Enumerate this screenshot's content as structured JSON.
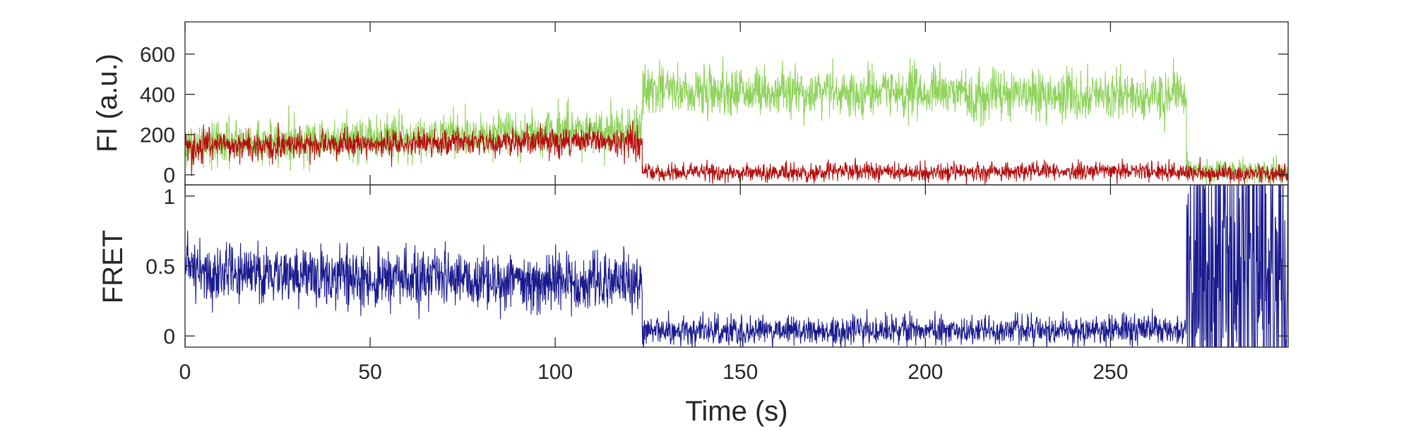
{
  "chart_data": [
    {
      "type": "line",
      "panel": "top",
      "ylabel": "FI (a.u.)",
      "xlim": [
        0,
        298
      ],
      "ylim": [
        -50,
        760
      ],
      "yticks": [
        0,
        200,
        400,
        600
      ],
      "ytick_labels": [
        "0",
        "200",
        "400",
        "600"
      ],
      "grid": false,
      "series": [
        {
          "color": "#8fd35b",
          "segments": [
            {
              "t": [
                0,
                123.5
              ],
              "mean": [
                150,
                230
              ],
              "noise_sd": 55
            },
            {
              "t": [
                123.5,
                270.5
              ],
              "mean": [
                420,
                390
              ],
              "noise_sd": 60
            },
            {
              "t": [
                270.5,
                298
              ],
              "mean": [
                20,
                20
              ],
              "noise_sd": 28
            }
          ]
        },
        {
          "color": "#b50d0d",
          "segments": [
            {
              "t": [
                0,
                123.5
              ],
              "mean": [
                140,
                170
              ],
              "noise_sd": 35
            },
            {
              "t": [
                123.5,
                270.5
              ],
              "mean": [
                10,
                20
              ],
              "noise_sd": 22
            },
            {
              "t": [
                270.5,
                298
              ],
              "mean": [
                5,
                5
              ],
              "noise_sd": 22
            }
          ]
        }
      ]
    },
    {
      "type": "line",
      "panel": "bottom",
      "xlabel": "Time (s)",
      "ylabel": "FRET",
      "xlim": [
        0,
        298
      ],
      "ylim": [
        -0.08,
        1.08
      ],
      "yticks": [
        0,
        0.5,
        1
      ],
      "ytick_labels": [
        "0",
        "0.5",
        "1"
      ],
      "xticks": [
        0,
        50,
        100,
        150,
        200,
        250
      ],
      "xtick_labels": [
        "0",
        "50",
        "100",
        "150",
        "200",
        "250"
      ],
      "grid": false,
      "series": [
        {
          "color": "#1a1a8f",
          "segments": [
            {
              "t": [
                0,
                123.5
              ],
              "mean": [
                0.45,
                0.38
              ],
              "noise_sd": 0.1
            },
            {
              "t": [
                123.5,
                270.5
              ],
              "mean": [
                0.04,
                0.04
              ],
              "noise_sd": 0.05
            },
            {
              "t": [
                270.5,
                298
              ],
              "mean": [
                0.5,
                0.5
              ],
              "noise_sd": 0.7,
              "clip": true
            }
          ]
        }
      ]
    }
  ]
}
